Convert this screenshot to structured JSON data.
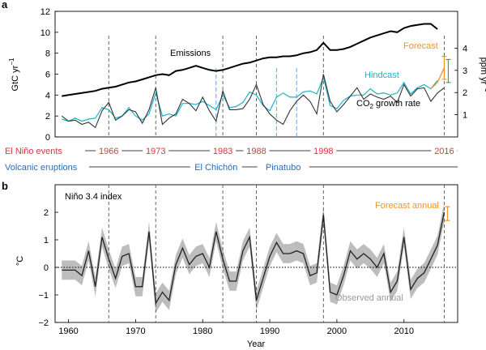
{
  "panel_a": {
    "letter": "a",
    "ylabel_left": "GtC yr",
    "ylabel_left_sup": "−1",
    "ylabel_right": "ppm yr",
    "ylabel_right_sup": "−1",
    "label_emissions": "Emissions",
    "label_forecast": "Forecast",
    "label_hindcast": "Hindcast",
    "label_co2_prefix": "CO",
    "label_co2_sub": "2",
    "label_co2_suffix": " growth rate"
  },
  "events": {
    "elnino_label": "El Niño events",
    "elnino_years": [
      "1966",
      "1973",
      "1983",
      "1988",
      "1998",
      "2016"
    ],
    "volcanic_label": "Volcanic eruptions",
    "volcanic_names": [
      "El Chichón",
      "Pinatubo"
    ]
  },
  "panel_b": {
    "letter": "b",
    "index_label": "Niño 3.4 index",
    "ylabel": "°C",
    "xlabel": "Year",
    "label_forecast": "Forecast annual",
    "label_observed": "Observed annual"
  },
  "colors": {
    "emissions": "#000000",
    "observed": "#333333",
    "hindcast": "#1ab3c8",
    "forecast": "#f0932b",
    "forecast_bar_green": "#3aa84a",
    "elnino_text": "#d9363e",
    "volcanic_text": "#2b6cb0",
    "band": "#bdbdbd"
  },
  "chart_data": [
    {
      "type": "line",
      "panel": "a",
      "x_range": [
        1958,
        2018
      ],
      "ylim_left": [
        0,
        12
      ],
      "yticks_left": [
        0,
        2,
        4,
        6,
        8,
        10,
        12
      ],
      "ylim_right_ppm": [
        0,
        5.66
      ],
      "yticks_right": [
        1,
        2,
        3,
        4
      ],
      "ylabel_left": "GtC yr−1",
      "ylabel_right": "ppm yr−1",
      "series": [
        {
          "name": "Emissions",
          "x": [
            1959,
            1960,
            1961,
            1962,
            1963,
            1964,
            1965,
            1966,
            1967,
            1968,
            1969,
            1970,
            1971,
            1972,
            1973,
            1974,
            1975,
            1976,
            1977,
            1978,
            1979,
            1980,
            1981,
            1982,
            1983,
            1984,
            1985,
            1986,
            1987,
            1988,
            1989,
            1990,
            1991,
            1992,
            1993,
            1994,
            1995,
            1996,
            1997,
            1998,
            1999,
            2000,
            2001,
            2002,
            2003,
            2004,
            2005,
            2006,
            2007,
            2008,
            2009,
            2010,
            2011,
            2012,
            2013,
            2014,
            2015
          ],
          "y": [
            3.9,
            4.0,
            4.1,
            4.2,
            4.3,
            4.4,
            4.6,
            4.7,
            4.8,
            5.0,
            5.2,
            5.3,
            5.5,
            5.7,
            5.9,
            6.0,
            5.9,
            6.3,
            6.4,
            6.6,
            6.8,
            6.6,
            6.4,
            6.3,
            6.4,
            6.6,
            6.8,
            7.0,
            7.1,
            7.3,
            7.5,
            7.6,
            7.6,
            7.7,
            7.7,
            7.8,
            8.0,
            8.1,
            8.3,
            9.0,
            8.3,
            8.3,
            8.4,
            8.6,
            8.9,
            9.2,
            9.5,
            9.7,
            9.9,
            10.1,
            10.0,
            10.4,
            10.6,
            10.7,
            10.8,
            10.8,
            10.3
          ]
        },
        {
          "name": "CO2 growth rate",
          "x": [
            1959,
            1960,
            1961,
            1962,
            1963,
            1964,
            1965,
            1966,
            1967,
            1968,
            1969,
            1970,
            1971,
            1972,
            1973,
            1974,
            1975,
            1976,
            1977,
            1978,
            1979,
            1980,
            1981,
            1982,
            1983,
            1984,
            1985,
            1986,
            1987,
            1988,
            1989,
            1990,
            1991,
            1992,
            1993,
            1994,
            1995,
            1996,
            1997,
            1998,
            1999,
            2000,
            2001,
            2002,
            2003,
            2004,
            2005,
            2006,
            2007,
            2008,
            2009,
            2010,
            2011,
            2012,
            2013,
            2014,
            2015,
            2016
          ],
          "y": [
            2.0,
            1.5,
            1.6,
            1.2,
            1.4,
            0.9,
            2.5,
            3.3,
            1.6,
            2.0,
            2.6,
            2.4,
            1.3,
            2.6,
            4.7,
            1.2,
            1.8,
            2.2,
            3.6,
            3.2,
            2.5,
            3.8,
            2.5,
            1.5,
            4.4,
            2.6,
            2.6,
            2.7,
            3.6,
            5.0,
            3.1,
            2.2,
            1.6,
            1.2,
            2.5,
            3.4,
            4.0,
            3.4,
            2.2,
            6.0,
            3.4,
            2.4,
            3.1,
            3.9,
            4.7,
            3.6,
            4.1,
            3.8,
            3.6,
            3.9,
            3.3,
            5.0,
            3.9,
            4.6,
            4.7,
            3.4,
            4.2,
            4.7
          ]
        },
        {
          "name": "Hindcast",
          "x": [
            1959,
            1960,
            1961,
            1962,
            1963,
            1964,
            1965,
            1966,
            1967,
            1968,
            1969,
            1970,
            1971,
            1972,
            1973,
            1974,
            1975,
            1976,
            1977,
            1978,
            1979,
            1980,
            1981,
            1982,
            1983,
            1984,
            1985,
            1986,
            1987,
            1988,
            1989,
            1990,
            1991,
            1992,
            1993,
            1994,
            1995,
            1996,
            1997,
            1998,
            1999,
            2000,
            2001,
            2002,
            2003,
            2004,
            2005,
            2006,
            2007,
            2008,
            2009,
            2010,
            2011,
            2012,
            2013,
            2014,
            2015
          ],
          "y": [
            1.7,
            1.5,
            1.8,
            1.5,
            1.7,
            1.8,
            2.8,
            2.6,
            1.8,
            2.0,
            2.8,
            2.0,
            1.6,
            2.2,
            4.2,
            2.0,
            2.2,
            2.0,
            3.2,
            3.2,
            3.1,
            3.4,
            3.0,
            2.6,
            4.0,
            2.8,
            2.9,
            3.3,
            4.3,
            4.0,
            3.0,
            2.5,
            3.8,
            4.2,
            3.8,
            3.8,
            4.3,
            4.4,
            4.1,
            5.7,
            3.0,
            2.7,
            3.5,
            3.9,
            4.0,
            4.0,
            4.6,
            4.1,
            4.2,
            4.0,
            4.2,
            5.2,
            4.1,
            4.7,
            5.0,
            4.6,
            5.4
          ]
        },
        {
          "name": "Forecast",
          "x": [
            2014,
            2015,
            2016
          ],
          "y": [
            4.6,
            5.2,
            6.6
          ],
          "range_2016": [
            5.5,
            7.7
          ]
        }
      ],
      "vertical_markers_elnino": [
        1966,
        1973,
        1983,
        1988,
        1998,
        2016
      ],
      "vertical_markers_volcanic": [
        1982,
        1991,
        1994
      ]
    },
    {
      "type": "line",
      "panel": "b",
      "x_range": [
        1958,
        2018
      ],
      "xticks": [
        1960,
        1970,
        1980,
        1990,
        2000,
        2010
      ],
      "ylim": [
        -2,
        3
      ],
      "yticks": [
        -2,
        -1,
        0,
        1,
        2
      ],
      "ylabel": "°C",
      "xlabel": "Year",
      "series": [
        {
          "name": "Observed annual",
          "x": [
            1959,
            1960,
            1961,
            1962,
            1963,
            1964,
            1965,
            1966,
            1967,
            1968,
            1969,
            1970,
            1971,
            1972,
            1973,
            1974,
            1975,
            1976,
            1977,
            1978,
            1979,
            1980,
            1981,
            1982,
            1983,
            1984,
            1985,
            1986,
            1987,
            1988,
            1989,
            1990,
            1991,
            1992,
            1993,
            1994,
            1995,
            1996,
            1997,
            1998,
            1999,
            2000,
            2001,
            2002,
            2003,
            2004,
            2005,
            2006,
            2007,
            2008,
            2009,
            2010,
            2011,
            2012,
            2013,
            2014,
            2015,
            2016
          ],
          "y": [
            -0.1,
            -0.1,
            -0.1,
            -0.3,
            0.6,
            -0.7,
            1.1,
            0.3,
            -0.4,
            0.4,
            0.5,
            -0.7,
            -0.7,
            1.3,
            -1.3,
            -0.9,
            -1.2,
            0.1,
            0.7,
            0.1,
            0.4,
            0.5,
            0.0,
            1.3,
            0.3,
            -0.5,
            -0.5,
            0.6,
            1.1,
            -1.2,
            -0.4,
            0.4,
            0.9,
            0.5,
            0.5,
            0.6,
            0.5,
            -0.3,
            -0.2,
            1.9,
            -0.9,
            -1.0,
            -0.3,
            0.6,
            0.3,
            0.5,
            0.3,
            0.0,
            0.5,
            -0.9,
            -0.5,
            1.1,
            -0.8,
            -0.4,
            -0.2,
            0.3,
            0.8,
            2.0
          ]
        },
        {
          "name": "Forecast annual",
          "x": [
            2016
          ],
          "y": [
            2.0
          ],
          "range": [
            1.7,
            2.2
          ]
        }
      ],
      "band_halfwidth_c": 0.35,
      "zero_line": "dotted",
      "vertical_markers_elnino": [
        1966,
        1973,
        1983,
        1988,
        1998,
        2016
      ]
    }
  ]
}
